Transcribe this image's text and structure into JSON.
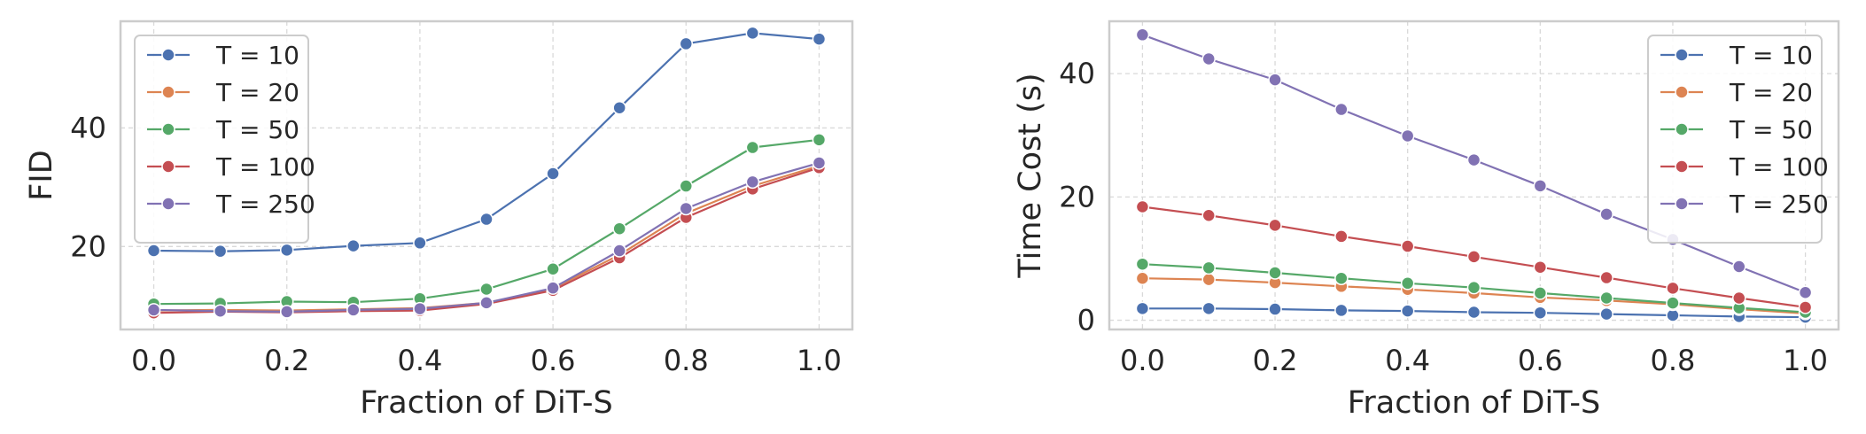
{
  "colors": {
    "series": [
      "#4c72b0",
      "#dd8452",
      "#55a868",
      "#c44e52",
      "#8172b3"
    ],
    "grid": "#d9d9d9",
    "frame": "#cccccc",
    "text": "#262626"
  },
  "chart_data": [
    {
      "type": "line",
      "xlabel": "Fraction of DiT-S",
      "ylabel": "FID",
      "xlim": [
        -0.05,
        1.05
      ],
      "ylim": [
        6,
        58
      ],
      "xticks": [
        0.0,
        0.2,
        0.4,
        0.6,
        0.8,
        1.0
      ],
      "xtick_labels": [
        "0.0",
        "0.2",
        "0.4",
        "0.6",
        "0.8",
        "1.0"
      ],
      "yticks": [
        20,
        40
      ],
      "ytick_labels": [
        "20",
        "40"
      ],
      "grid": true,
      "legend_position": "upper-left",
      "x": [
        0.0,
        0.1,
        0.2,
        0.3,
        0.4,
        0.5,
        0.6,
        0.7,
        0.8,
        0.9,
        1.0
      ],
      "series": [
        {
          "name": "T = 10",
          "values": [
            19.3,
            19.2,
            19.4,
            20.1,
            20.6,
            24.6,
            32.3,
            43.4,
            54.2,
            56.0,
            55.0
          ]
        },
        {
          "name": "T = 20",
          "values": [
            9.2,
            9.3,
            9.2,
            9.4,
            9.6,
            10.5,
            12.9,
            18.6,
            25.6,
            30.2,
            33.6
          ]
        },
        {
          "name": "T = 50",
          "values": [
            10.3,
            10.4,
            10.7,
            10.6,
            11.2,
            12.8,
            16.2,
            23.0,
            30.2,
            36.7,
            38.0
          ]
        },
        {
          "name": "T = 100",
          "values": [
            8.8,
            9.0,
            8.9,
            9.1,
            9.2,
            10.3,
            12.6,
            18.1,
            24.9,
            29.7,
            33.3
          ]
        },
        {
          "name": "T = 250",
          "values": [
            9.3,
            9.1,
            9.0,
            9.3,
            9.5,
            10.5,
            13.0,
            19.3,
            26.4,
            30.9,
            34.1
          ]
        }
      ]
    },
    {
      "type": "line",
      "xlabel": "Fraction of DiT-S",
      "ylabel": "Time Cost (s)",
      "xlim": [
        -0.05,
        1.05
      ],
      "ylim": [
        -1.5,
        48.5
      ],
      "xticks": [
        0.0,
        0.2,
        0.4,
        0.6,
        0.8,
        1.0
      ],
      "xtick_labels": [
        "0.0",
        "0.2",
        "0.4",
        "0.6",
        "0.8",
        "1.0"
      ],
      "yticks": [
        0,
        20,
        40
      ],
      "ytick_labels": [
        "0",
        "20",
        "40"
      ],
      "grid": true,
      "legend_position": "upper-right",
      "x": [
        0.0,
        0.1,
        0.2,
        0.3,
        0.4,
        0.5,
        0.6,
        0.7,
        0.8,
        0.9,
        1.0
      ],
      "series": [
        {
          "name": "T = 10",
          "values": [
            1.9,
            1.9,
            1.8,
            1.6,
            1.5,
            1.3,
            1.2,
            1.0,
            0.8,
            0.6,
            0.5
          ]
        },
        {
          "name": "T = 20",
          "values": [
            6.8,
            6.6,
            6.1,
            5.5,
            5.0,
            4.4,
            3.7,
            3.2,
            2.6,
            1.8,
            1.1
          ]
        },
        {
          "name": "T = 50",
          "values": [
            9.1,
            8.5,
            7.7,
            6.8,
            6.0,
            5.3,
            4.4,
            3.6,
            2.8,
            2.0,
            1.3
          ]
        },
        {
          "name": "T = 100",
          "values": [
            18.4,
            17.0,
            15.4,
            13.6,
            12.0,
            10.3,
            8.6,
            6.9,
            5.2,
            3.6,
            2.1
          ]
        },
        {
          "name": "T = 250",
          "values": [
            46.3,
            42.4,
            39.0,
            34.2,
            29.9,
            26.0,
            21.8,
            17.2,
            13.1,
            8.7,
            4.5
          ]
        }
      ]
    }
  ]
}
